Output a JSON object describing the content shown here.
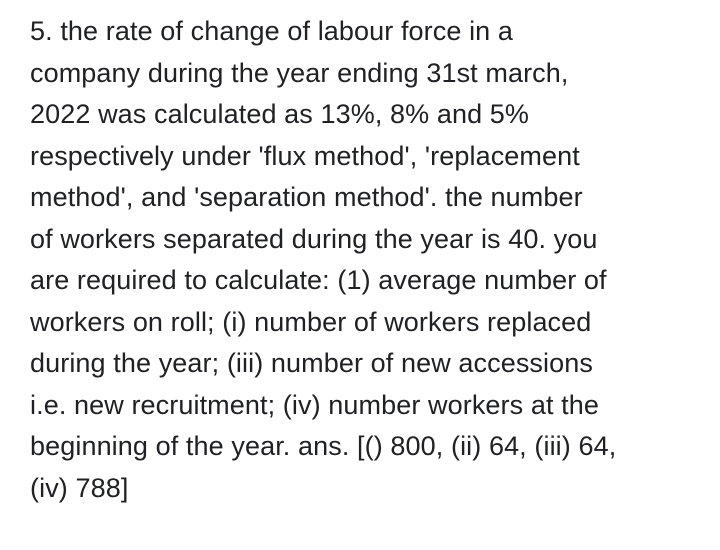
{
  "document": {
    "background_color": "#ffffff",
    "text_color": "#202124",
    "lines": [
      "5. the rate of change of labour force in a",
      "company during the year ending 31st march,",
      "2022 was calculated as 13%, 8% and 5%",
      "respectively under 'flux method', 'replacement",
      "method', and 'separation method'. the number",
      "of workers separated during the year is 40. you",
      "are required to calculate: (1) average number of",
      "workers on roll; (i) number of workers replaced",
      "during the year; (iii) number of new accessions",
      "i.e. new recruitment; (iv) number workers at the",
      "beginning of the year. ans. [() 800, (ii) 64, (iii) 64,",
      "(iv) 788]"
    ]
  }
}
